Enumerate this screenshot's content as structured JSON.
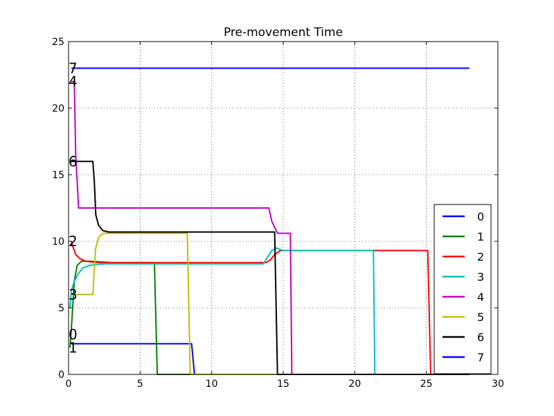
{
  "chart_data": {
    "type": "line",
    "title": "Pre-movement Time",
    "xlabel": "",
    "ylabel": "",
    "xlim": [
      0,
      30
    ],
    "ylim": [
      0,
      25
    ],
    "xticks": [
      0,
      5,
      10,
      15,
      20,
      25,
      30
    ],
    "yticks": [
      0,
      5,
      10,
      15,
      20,
      25
    ],
    "grid": true,
    "legend_position": "lower-right",
    "series": [
      {
        "name": "0",
        "color": "#0000ff",
        "points": [
          [
            0.2,
            2.3
          ],
          [
            8.6,
            2.3
          ],
          [
            8.8,
            0
          ],
          [
            28.0,
            0
          ]
        ]
      },
      {
        "name": "1",
        "color": "#008000",
        "points": [
          [
            0.1,
            2.0
          ],
          [
            0.2,
            3.5
          ],
          [
            0.4,
            7.0
          ],
          [
            0.6,
            8.2
          ],
          [
            0.9,
            8.5
          ],
          [
            1.5,
            8.5
          ],
          [
            3.0,
            8.4
          ],
          [
            6.0,
            8.4
          ],
          [
            6.2,
            0
          ],
          [
            28.0,
            0
          ]
        ]
      },
      {
        "name": "2",
        "color": "#ff0000",
        "points": [
          [
            0.2,
            10.0
          ],
          [
            0.3,
            9.6
          ],
          [
            0.5,
            9.0
          ],
          [
            0.8,
            8.7
          ],
          [
            1.2,
            8.5
          ],
          [
            2.0,
            8.4
          ],
          [
            13.8,
            8.4
          ],
          [
            14.1,
            8.6
          ],
          [
            14.4,
            9.0
          ],
          [
            14.8,
            9.3
          ],
          [
            25.1,
            9.3
          ],
          [
            25.3,
            0
          ],
          [
            28.0,
            0
          ]
        ]
      },
      {
        "name": "3",
        "color": "#00bfbf",
        "points": [
          [
            0.1,
            5.0
          ],
          [
            0.2,
            6.3
          ],
          [
            0.4,
            7.0
          ],
          [
            0.7,
            7.6
          ],
          [
            1.0,
            8.0
          ],
          [
            1.5,
            8.2
          ],
          [
            2.5,
            8.3
          ],
          [
            13.6,
            8.3
          ],
          [
            13.9,
            8.8
          ],
          [
            14.2,
            9.3
          ],
          [
            14.5,
            9.5
          ],
          [
            15.0,
            9.3
          ],
          [
            21.3,
            9.3
          ],
          [
            21.4,
            0
          ],
          [
            28.0,
            0
          ]
        ]
      },
      {
        "name": "4",
        "color": "#bf00bf",
        "points": [
          [
            0.2,
            22.0
          ],
          [
            0.4,
            22.0
          ],
          [
            0.5,
            16.5
          ],
          [
            0.7,
            12.5
          ],
          [
            14.0,
            12.5
          ],
          [
            14.2,
            11.5
          ],
          [
            14.6,
            10.6
          ],
          [
            15.5,
            10.6
          ],
          [
            15.6,
            0
          ],
          [
            28.0,
            0
          ]
        ]
      },
      {
        "name": "5",
        "color": "#bfbf00",
        "points": [
          [
            0.2,
            6.0
          ],
          [
            1.7,
            6.0
          ],
          [
            1.8,
            8.0
          ],
          [
            1.9,
            9.5
          ],
          [
            2.1,
            10.3
          ],
          [
            2.4,
            10.6
          ],
          [
            8.3,
            10.6
          ],
          [
            8.5,
            0
          ],
          [
            28.0,
            0
          ]
        ]
      },
      {
        "name": "6",
        "color": "#000000",
        "points": [
          [
            0.2,
            16.0
          ],
          [
            1.7,
            16.0
          ],
          [
            1.8,
            14.5
          ],
          [
            1.9,
            12.0
          ],
          [
            2.1,
            11.2
          ],
          [
            2.4,
            10.8
          ],
          [
            2.8,
            10.7
          ],
          [
            14.4,
            10.7
          ],
          [
            14.6,
            0
          ],
          [
            28.0,
            0
          ]
        ]
      },
      {
        "name": "7",
        "color": "#0000ff",
        "points": [
          [
            0.2,
            23.0
          ],
          [
            28.0,
            23.0
          ]
        ]
      }
    ],
    "annotations": [
      {
        "text": "7",
        "x": 0.0,
        "y": 23.0
      },
      {
        "text": "4",
        "x": 0.0,
        "y": 22.0
      },
      {
        "text": "6",
        "x": 0.0,
        "y": 16.0
      },
      {
        "text": "2",
        "x": 0.0,
        "y": 10.0
      },
      {
        "text": "3",
        "x": 0.0,
        "y": 6.0
      },
      {
        "text": "0",
        "x": 0.0,
        "y": 3.0
      },
      {
        "text": "1",
        "x": 0.0,
        "y": 2.0
      }
    ]
  }
}
